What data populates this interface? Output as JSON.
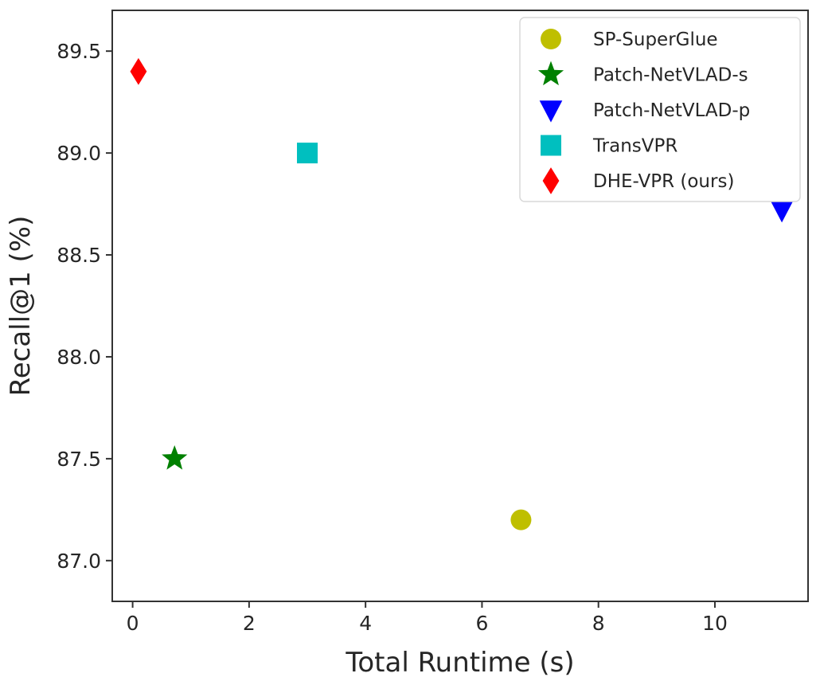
{
  "chart_data": {
    "type": "scatter",
    "xlabel": "Total Runtime (s)",
    "ylabel": "Recall@1 (%)",
    "xlim": [
      -0.35,
      11.6
    ],
    "ylim": [
      86.8,
      89.7
    ],
    "xticks": [
      0,
      2,
      4,
      6,
      8,
      10
    ],
    "yticks": [
      87.0,
      87.5,
      88.0,
      88.5,
      89.0,
      89.5
    ],
    "xtick_labels": [
      "0",
      "2",
      "4",
      "6",
      "8",
      "10"
    ],
    "ytick_labels": [
      "87.0",
      "87.5",
      "88.0",
      "88.5",
      "89.0",
      "89.5"
    ],
    "grid": false,
    "legend_position": "top-right",
    "series": [
      {
        "name": "SP-SuperGlue",
        "marker": "circle",
        "color": "#bfbf00",
        "x": [
          6.67
        ],
        "y": [
          87.2
        ]
      },
      {
        "name": "Patch-NetVLAD-s",
        "marker": "star",
        "color": "#008000",
        "x": [
          0.72
        ],
        "y": [
          87.5
        ]
      },
      {
        "name": "Patch-NetVLAD-p",
        "marker": "triangle-down",
        "color": "#0000ff",
        "x": [
          11.15
        ],
        "y": [
          88.72
        ]
      },
      {
        "name": "TransVPR",
        "marker": "square",
        "color": "#00bfbf",
        "x": [
          3.0
        ],
        "y": [
          89.0
        ]
      },
      {
        "name": "DHE-VPR (ours)",
        "marker": "diamond",
        "color": "#ff0000",
        "x": [
          0.1
        ],
        "y": [
          89.4
        ]
      }
    ]
  }
}
